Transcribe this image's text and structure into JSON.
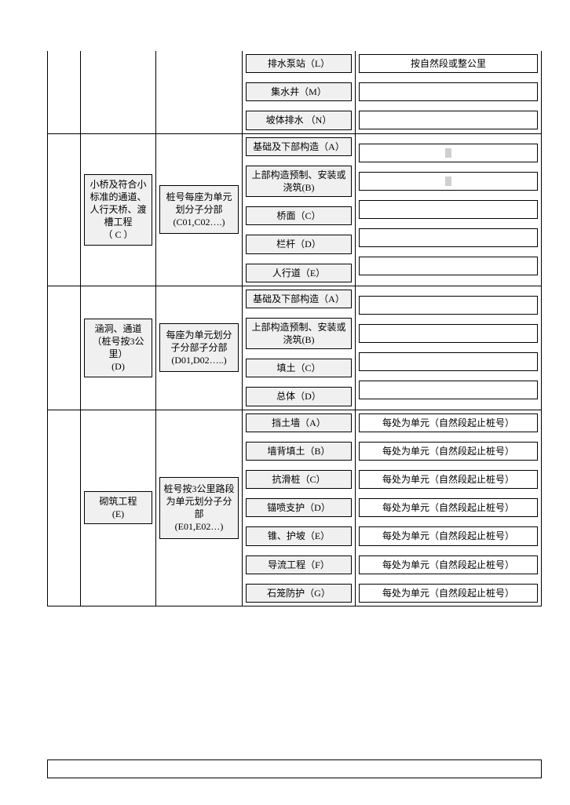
{
  "colors": {
    "cell_bg": "#f0f0f0",
    "border": "#000000",
    "page_bg": "#ffffff"
  },
  "font": {
    "family": "SimSun",
    "size_pt": 9
  },
  "sections": [
    {
      "col2": "",
      "col3": "",
      "col4": [
        "排水泵站（L）",
        "集水井（M）",
        "坡体排水 （N）"
      ],
      "col5": [
        "按自然段或整公里",
        "",
        ""
      ],
      "col5_marker": [
        false,
        false,
        false
      ],
      "col4_tall": [
        false,
        false,
        false
      ]
    },
    {
      "col2": "小桥及符合小标准的通道、人行天桥、渡槽工程\n（ C ）",
      "col3": "桩号每座为单元划分子分部\n(C01,C02….)",
      "col4": [
        "基础及下部构造（A）",
        "上部构造预制、安装或浇筑(B)",
        "桥面（C）",
        "栏杆（D）",
        "人行道（E）"
      ],
      "col5": [
        "",
        "",
        "",
        "",
        ""
      ],
      "col5_marker": [
        true,
        true,
        false,
        false,
        false
      ],
      "col4_tall": [
        true,
        true,
        false,
        false,
        false
      ]
    },
    {
      "col2": "涵洞、通道\n（桩号按3公里）\n(D)",
      "col3": "每座为单元划分子分部子分部\n(D01,D02…..)",
      "col4": [
        "基础及下部构造（A）",
        "上部构造预制、安装或浇筑(B)",
        "填土（C）",
        "总体（D）"
      ],
      "col5": [
        "",
        "",
        "",
        ""
      ],
      "col5_marker": [
        false,
        false,
        false,
        false
      ],
      "col4_tall": [
        true,
        true,
        false,
        false
      ]
    },
    {
      "col2": "砌筑工程\n(E)",
      "col3": "桩号按3公里路段为单元划分子分部\n(E01,E02…)",
      "col4": [
        "挡土墙（A）",
        "墙背填土（B）",
        "抗滑桩（C）",
        "锚喷支护（D）",
        "锥、护坡（E）",
        "导流工程（F）",
        "石笼防护（G）"
      ],
      "col5": [
        "每处为单元（自然段起止桩号）",
        "每处为单元（自然段起止桩号）",
        "每处为单元（自然段起止桩号）",
        "每处为单元（自然段起止桩号）",
        "每处为单元（自然段起止桩号）",
        "每处为单元（自然段起止桩号）",
        "每处为单元（自然段起止桩号）"
      ],
      "col5_marker": [
        false,
        false,
        false,
        false,
        false,
        false,
        false
      ],
      "col4_tall": [
        false,
        false,
        false,
        false,
        false,
        false,
        false
      ]
    }
  ]
}
